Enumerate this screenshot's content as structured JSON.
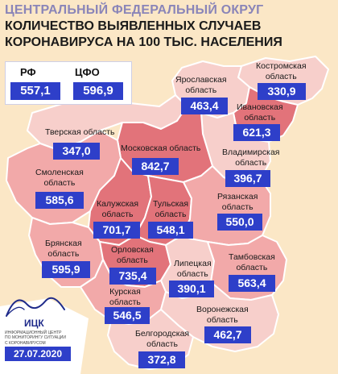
{
  "title": {
    "line1": "ЦЕНТРАЛЬНЫЙ ФЕДЕРАЛЬНЫЙ ОКРУГ",
    "line2": "КОЛИЧЕСТВО ВЫЯВЛЕННЫХ СЛУЧАЕВ",
    "line3": "КОРОНАВИРУСА НА 100 ТЫС. НАСЕЛЕНИЯ"
  },
  "summary": {
    "rf_label": "РФ",
    "rf_value": "557,1",
    "cfo_label": "ЦФО",
    "cfo_value": "596,9"
  },
  "regions": {
    "kostroma": {
      "name_line1": "Костромская",
      "name_line2": "область",
      "value": "330,9"
    },
    "yaroslavl": {
      "name_line1": "Ярославская",
      "name_line2": "область",
      "value": "463,4"
    },
    "ivanovo": {
      "name_line1": "Ивановская",
      "name_line2": "область",
      "value": "621,3"
    },
    "tver": {
      "name_line1": "Тверская область",
      "value": "347,0"
    },
    "moscow": {
      "name_line1": "Московская область",
      "value": "842,7"
    },
    "vladimir": {
      "name_line1": "Владимирская",
      "name_line2": "область",
      "value": "396,7"
    },
    "smolensk": {
      "name_line1": "Смоленская",
      "name_line2": "область",
      "value": "585,6"
    },
    "kaluga": {
      "name_line1": "Калужская",
      "name_line2": "область",
      "value": "701,7"
    },
    "tula": {
      "name_line1": "Тульская",
      "name_line2": "область",
      "value": "548,1"
    },
    "ryazan": {
      "name_line1": "Рязанская",
      "name_line2": "область",
      "value": "550,0"
    },
    "bryansk": {
      "name_line1": "Брянская",
      "name_line2": "область",
      "value": "595,9"
    },
    "orel": {
      "name_line1": "Орловская",
      "name_line2": "область",
      "value": "735,4"
    },
    "lipetsk": {
      "name_line1": "Липецкая",
      "name_line2": "область",
      "value": "390,1"
    },
    "tambov": {
      "name_line1": "Тамбовская",
      "name_line2": "область",
      "value": "563,4"
    },
    "kursk": {
      "name_line1": "Курская",
      "name_line2": "область",
      "value": "546,5"
    },
    "voronezh": {
      "name_line1": "Воронежская",
      "name_line2": "область",
      "value": "462,7"
    },
    "belgorod": {
      "name_line1": "Белгородская",
      "name_line2": "область",
      "value": "372,8"
    }
  },
  "logo": {
    "name": "ИЦК",
    "caption_line1": "ИНФОРМАЦИОННЫЙ ЦЕНТР",
    "caption_line2": "ПО МОНИТОРИНГУ СИТУАЦИИ",
    "caption_line3": "С КОРОНАВИРУСОМ"
  },
  "date": "27.07.2020",
  "colors": {
    "value_box": "#2e3fc9",
    "title_accent": "#8a85b8",
    "level_high": "#e2737a",
    "level_mid": "#f2a9a9",
    "level_low": "#f7cfcb",
    "outside": "#fbe7c6",
    "border": "#ffffff"
  }
}
